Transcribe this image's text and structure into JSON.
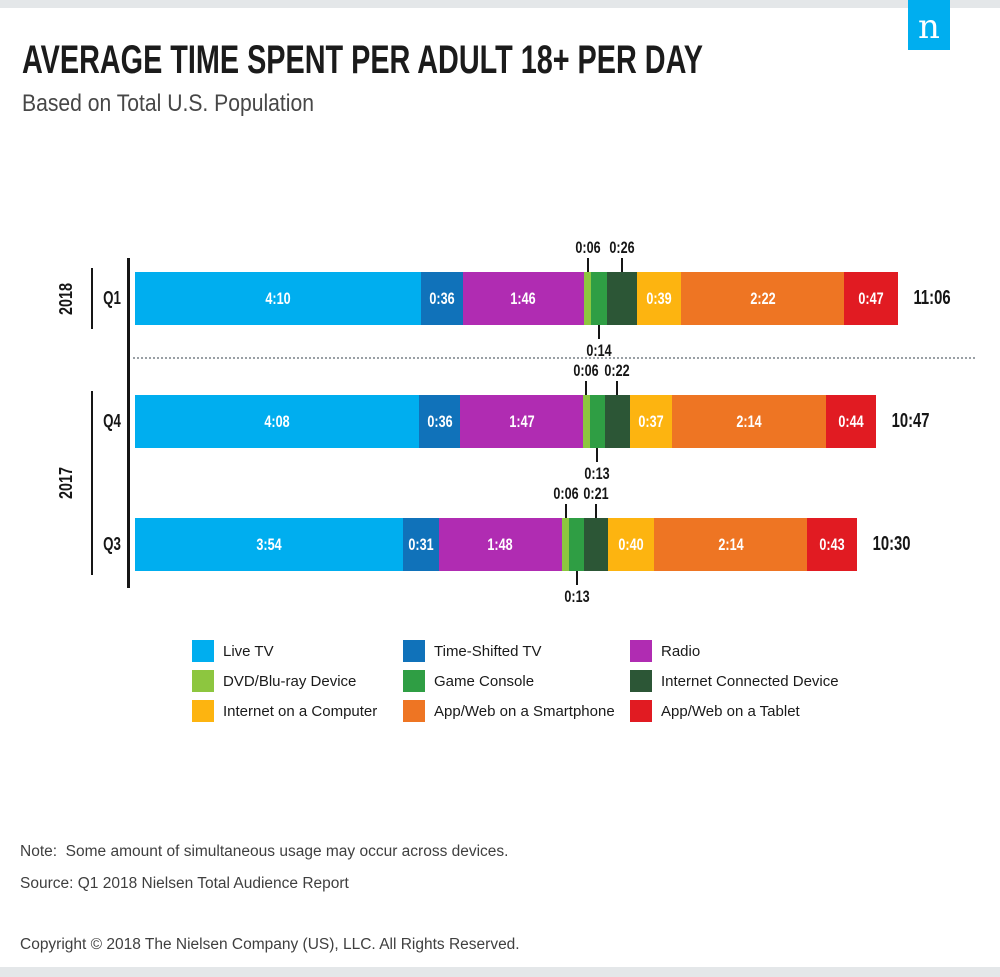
{
  "header": {
    "title": "AVERAGE TIME SPENT PER ADULT 18+ PER DAY",
    "subtitle": "Based on Total U.S. Population",
    "logo_letter": "n",
    "logo_color": "#00aeef"
  },
  "chart_data": {
    "type": "bar",
    "orientation": "horizontal-stacked",
    "unit": "hours:minutes per day",
    "categories": [
      "Live TV",
      "Time-Shifted TV",
      "Radio",
      "DVD/Blu-ray Device",
      "Game Console",
      "Internet Connected Device",
      "Internet on a Computer",
      "App/Web on a Smartphone",
      "App/Web on a Tablet"
    ],
    "colors": [
      "#00aeef",
      "#1072ba",
      "#b02cb2",
      "#8dc63f",
      "#2f9e44",
      "#2c5636",
      "#fdb410",
      "#ee7523",
      "#e11b22"
    ],
    "groups": [
      {
        "year": "2018",
        "rows": [
          {
            "quarter": "Q1",
            "total": "11:06",
            "values": [
              "4:10",
              "0:36",
              "1:46",
              "0:06",
              "0:14",
              "0:26",
              "0:39",
              "2:22",
              "0:47"
            ],
            "minutes": [
              250,
              36,
              106,
              6,
              14,
              26,
              39,
              142,
              47
            ]
          }
        ]
      },
      {
        "year": "2017",
        "rows": [
          {
            "quarter": "Q4",
            "total": "10:47",
            "values": [
              "4:08",
              "0:36",
              "1:47",
              "0:06",
              "0:13",
              "0:22",
              "0:37",
              "2:14",
              "0:44"
            ],
            "minutes": [
              248,
              36,
              107,
              6,
              13,
              22,
              37,
              134,
              44
            ]
          },
          {
            "quarter": "Q3",
            "total": "10:30",
            "values": [
              "3:54",
              "0:31",
              "1:48",
              "0:06",
              "0:13",
              "0:21",
              "0:40",
              "2:14",
              "0:43"
            ],
            "minutes": [
              234,
              31,
              108,
              6,
              13,
              21,
              40,
              134,
              43
            ]
          }
        ]
      }
    ],
    "inline_label_indices": [
      0,
      1,
      2,
      6,
      7,
      8
    ],
    "callout_above_indices": [
      3,
      5
    ],
    "callout_below_indices": [
      4
    ],
    "legend_position": "below-chart",
    "grid": false
  },
  "footer": {
    "note": "Note:  Some amount of simultaneous usage may occur across devices.",
    "source": "Source: Q1 2018 Nielsen Total Audience Report",
    "copyright": "Copyright © 2018 The Nielsen Company (US), LLC. All Rights Reserved."
  }
}
